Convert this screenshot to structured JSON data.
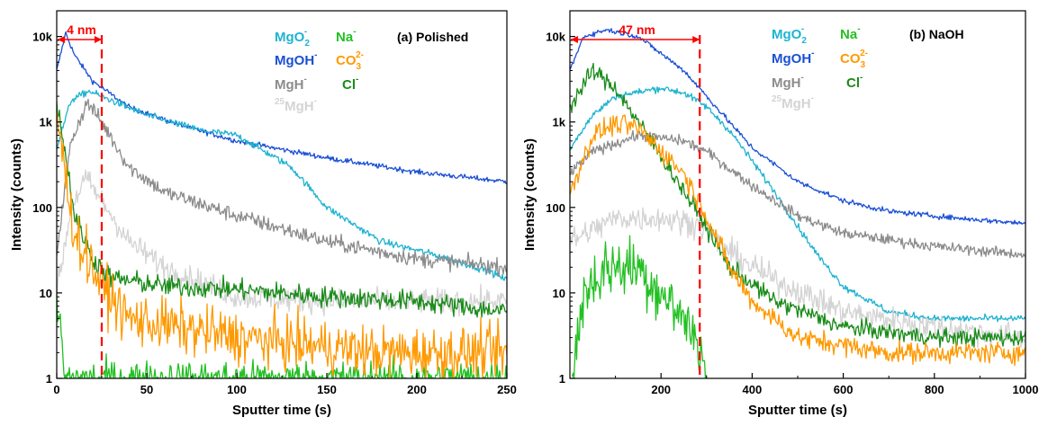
{
  "chart_data": [
    {
      "type": "line",
      "panel_label": "(a) Polished",
      "xlabel": "Sputter time (s)",
      "ylabel": "Intensity (counts)",
      "xlim": [
        0,
        250
      ],
      "ylim": [
        1,
        20000
      ],
      "yscale": "log",
      "x_ticks": [
        0,
        50,
        100,
        150,
        200,
        250
      ],
      "x_tick_labels": [
        "0",
        "50",
        "100",
        "150",
        "200",
        "250"
      ],
      "y_ticks": [
        1,
        10,
        100,
        1000,
        10000
      ],
      "y_tick_labels": [
        "1",
        "10",
        "100",
        "1k",
        "10k"
      ],
      "annotation": {
        "text": "4 nm",
        "x": 25,
        "color": "#ff0000"
      },
      "legend": [
        {
          "base": "MgO",
          "sub": "2",
          "sup": "-",
          "color": "#1fb3d1"
        },
        {
          "base": "Na",
          "sub": "",
          "sup": "-",
          "color": "#22c022"
        },
        {
          "base": "MgOH",
          "sub": "",
          "sup": "-",
          "color": "#1a4fd6"
        },
        {
          "base": "CO",
          "sub": "3",
          "sup": "2-",
          "color": "#ff9900"
        },
        {
          "base": "MgH",
          "sub": "",
          "sup": "-",
          "color": "#8c8c8c"
        },
        {
          "base": "Cl",
          "sub": "",
          "sup": "-",
          "color": "#1a8c1a"
        },
        {
          "pre": "25",
          "base": "MgH",
          "sub": "",
          "sup": "-",
          "color": "#d4d4d4"
        }
      ],
      "series": [
        {
          "key": "MgOH",
          "color": "#1a4fd6",
          "noise": 0.03,
          "points": [
            [
              0,
              4000
            ],
            [
              5,
              11000
            ],
            [
              10,
              6000
            ],
            [
              20,
              3000
            ],
            [
              40,
              1500
            ],
            [
              70,
              900
            ],
            [
              100,
              600
            ],
            [
              150,
              380
            ],
            [
              200,
              260
            ],
            [
              250,
              200
            ]
          ]
        },
        {
          "key": "MgO2",
          "color": "#1fb3d1",
          "noise": 0.04,
          "points": [
            [
              0,
              500
            ],
            [
              8,
              1800
            ],
            [
              18,
              2300
            ],
            [
              30,
              1800
            ],
            [
              50,
              1200
            ],
            [
              80,
              800
            ],
            [
              100,
              700
            ],
            [
              130,
              300
            ],
            [
              150,
              100
            ],
            [
              180,
              40
            ],
            [
              210,
              28
            ],
            [
              240,
              18
            ],
            [
              250,
              14
            ]
          ]
        },
        {
          "key": "MgH",
          "color": "#8c8c8c",
          "noise": 0.09,
          "points": [
            [
              0,
              30
            ],
            [
              8,
              600
            ],
            [
              17,
              1700
            ],
            [
              25,
              1000
            ],
            [
              40,
              300
            ],
            [
              60,
              150
            ],
            [
              100,
              80
            ],
            [
              150,
              40
            ],
            [
              200,
              25
            ],
            [
              250,
              20
            ]
          ]
        },
        {
          "key": "MgH25",
          "color": "#d4d4d4",
          "noise": 0.14,
          "points": [
            [
              0,
              10
            ],
            [
              8,
              100
            ],
            [
              16,
              220
            ],
            [
              25,
              120
            ],
            [
              40,
              40
            ],
            [
              60,
              20
            ],
            [
              100,
              9
            ],
            [
              150,
              8
            ],
            [
              200,
              8
            ],
            [
              250,
              8
            ]
          ]
        },
        {
          "key": "Na",
          "color": "#22c022",
          "noise": 0.2,
          "points": [
            [
              0,
              6
            ],
            [
              2,
              5
            ],
            [
              4,
              1
            ],
            [
              250,
              1
            ]
          ]
        },
        {
          "key": "Cl",
          "color": "#1a8c1a",
          "noise": 0.12,
          "points": [
            [
              0,
              1800
            ],
            [
              5,
              400
            ],
            [
              10,
              80
            ],
            [
              20,
              25
            ],
            [
              30,
              15
            ],
            [
              60,
              12
            ],
            [
              100,
              11
            ],
            [
              150,
              9
            ],
            [
              200,
              8
            ],
            [
              250,
              6
            ]
          ]
        },
        {
          "key": "CO3",
          "color": "#ff9900",
          "noise": 0.3,
          "points": [
            [
              0,
              1400
            ],
            [
              4,
              300
            ],
            [
              10,
              50
            ],
            [
              25,
              12
            ],
            [
              40,
              5
            ],
            [
              100,
              3
            ],
            [
              180,
              2
            ],
            [
              250,
              2
            ]
          ]
        }
      ]
    },
    {
      "type": "line",
      "panel_label": "(b) NaOH",
      "xlabel": "Sputter time (s)",
      "ylabel": "Intensity (counts)",
      "xlim": [
        0,
        1000
      ],
      "ylim": [
        1,
        20000
      ],
      "yscale": "log",
      "x_ticks": [
        200,
        400,
        600,
        800,
        1000
      ],
      "x_tick_labels": [
        "200",
        "400",
        "600",
        "800",
        "1000"
      ],
      "y_ticks": [
        1,
        10,
        100,
        1000,
        10000
      ],
      "y_tick_labels": [
        "1",
        "10",
        "100",
        "1k",
        "10k"
      ],
      "annotation": {
        "text": "47 nm",
        "x": 285,
        "color": "#ff0000"
      },
      "legend": [
        {
          "base": "MgO",
          "sub": "2",
          "sup": "-",
          "color": "#1fb3d1"
        },
        {
          "base": "Na",
          "sub": "",
          "sup": "-",
          "color": "#22c022"
        },
        {
          "base": "MgOH",
          "sub": "",
          "sup": "-",
          "color": "#1a4fd6"
        },
        {
          "base": "CO",
          "sub": "3",
          "sup": "2-",
          "color": "#ff9900"
        },
        {
          "base": "MgH",
          "sub": "",
          "sup": "-",
          "color": "#8c8c8c"
        },
        {
          "base": "Cl",
          "sub": "",
          "sup": "-",
          "color": "#1a8c1a"
        },
        {
          "pre": "25",
          "base": "MgH",
          "sub": "",
          "sup": "-",
          "color": "#d4d4d4"
        }
      ],
      "series": [
        {
          "key": "MgOH",
          "color": "#1a4fd6",
          "noise": 0.03,
          "points": [
            [
              0,
              4000
            ],
            [
              30,
              10000
            ],
            [
              80,
              12000
            ],
            [
              150,
              10000
            ],
            [
              250,
              4000
            ],
            [
              300,
              2000
            ],
            [
              400,
              500
            ],
            [
              500,
              200
            ],
            [
              600,
              120
            ],
            [
              700,
              90
            ],
            [
              850,
              75
            ],
            [
              1000,
              65
            ]
          ]
        },
        {
          "key": "MgO2",
          "color": "#1fb3d1",
          "noise": 0.04,
          "points": [
            [
              0,
              500
            ],
            [
              50,
              1200
            ],
            [
              100,
              2000
            ],
            [
              200,
              2500
            ],
            [
              250,
              2200
            ],
            [
              300,
              1500
            ],
            [
              350,
              800
            ],
            [
              400,
              350
            ],
            [
              450,
              150
            ],
            [
              500,
              60
            ],
            [
              550,
              25
            ],
            [
              600,
              12
            ],
            [
              700,
              6
            ],
            [
              800,
              5
            ],
            [
              1000,
              5
            ]
          ]
        },
        {
          "key": "MgH",
          "color": "#8c8c8c",
          "noise": 0.06,
          "points": [
            [
              0,
              250
            ],
            [
              50,
              450
            ],
            [
              150,
              700
            ],
            [
              250,
              600
            ],
            [
              300,
              450
            ],
            [
              400,
              180
            ],
            [
              500,
              80
            ],
            [
              600,
              50
            ],
            [
              800,
              35
            ],
            [
              1000,
              28
            ]
          ]
        },
        {
          "key": "MgH25",
          "color": "#d4d4d4",
          "noise": 0.15,
          "points": [
            [
              0,
              40
            ],
            [
              100,
              75
            ],
            [
              200,
              75
            ],
            [
              280,
              65
            ],
            [
              350,
              30
            ],
            [
              450,
              14
            ],
            [
              600,
              6
            ],
            [
              800,
              4
            ],
            [
              1000,
              3
            ]
          ]
        },
        {
          "key": "Cl",
          "color": "#1a8c1a",
          "noise": 0.1,
          "points": [
            [
              0,
              1500
            ],
            [
              50,
              4000
            ],
            [
              100,
              2500
            ],
            [
              200,
              400
            ],
            [
              285,
              80
            ],
            [
              350,
              20
            ],
            [
              450,
              8
            ],
            [
              600,
              4
            ],
            [
              800,
              3
            ],
            [
              1000,
              3
            ]
          ]
        },
        {
          "key": "CO3",
          "color": "#ff9900",
          "noise": 0.12,
          "points": [
            [
              0,
              150
            ],
            [
              50,
              700
            ],
            [
              100,
              950
            ],
            [
              150,
              850
            ],
            [
              250,
              250
            ],
            [
              300,
              80
            ],
            [
              350,
              20
            ],
            [
              400,
              8
            ],
            [
              500,
              3
            ],
            [
              700,
              2
            ],
            [
              1000,
              2
            ]
          ]
        },
        {
          "key": "Na",
          "color": "#22c022",
          "noise": 0.35,
          "points": [
            [
              5,
              1
            ],
            [
              30,
              10
            ],
            [
              80,
              20
            ],
            [
              150,
              20
            ],
            [
              200,
              10
            ],
            [
              250,
              5
            ],
            [
              280,
              3
            ],
            [
              300,
              1
            ]
          ]
        }
      ]
    }
  ]
}
